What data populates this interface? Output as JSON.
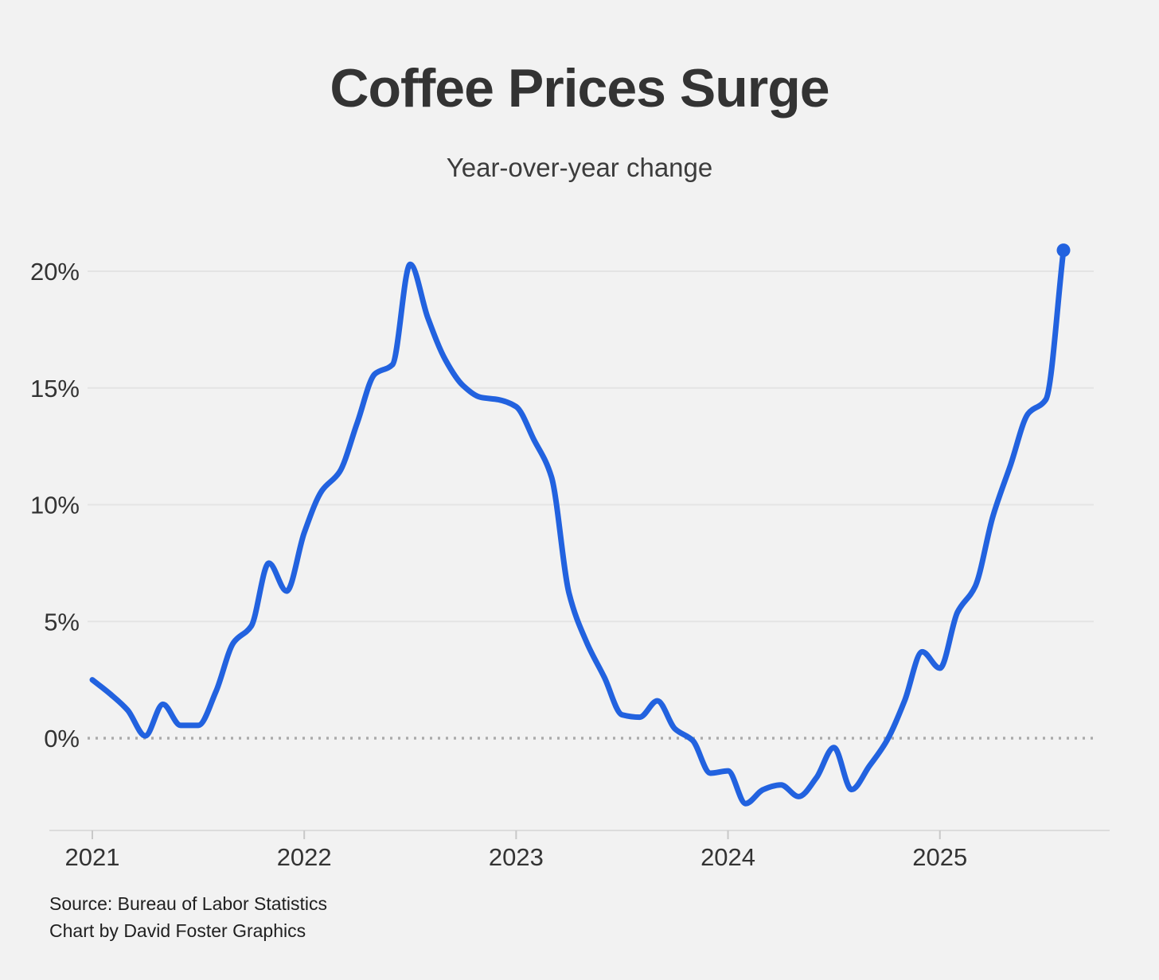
{
  "header": {
    "title": "Coffee Prices Surge",
    "subtitle": "Year-over-year change"
  },
  "footer": {
    "source": "Source: Bureau of Labor Statistics",
    "credit": "Chart by David Foster Graphics"
  },
  "chart_data": {
    "type": "line",
    "title": "Coffee Prices Surge",
    "subtitle": "Year-over-year change",
    "unit": "percent year-over-year",
    "x_start": "2021-01",
    "x_end": "2025-08",
    "x_tick_labels": [
      "2021",
      "2022",
      "2023",
      "2024",
      "2025"
    ],
    "x_tick_month_index": [
      0,
      12,
      24,
      36,
      48
    ],
    "y_tick_labels": [
      "0%",
      "5%",
      "10%",
      "15%",
      "20%"
    ],
    "y_tick_values": [
      0,
      5,
      10,
      15,
      20
    ],
    "ylim": [
      -3.6,
      21.6
    ],
    "grid": "horizontal",
    "zero_line": "dotted",
    "legend": "none",
    "series": [
      {
        "name": "Coffee prices, year-over-year change (%)",
        "months": [
          "2021-01",
          "2021-02",
          "2021-03",
          "2021-04",
          "2021-05",
          "2021-06",
          "2021-07",
          "2021-08",
          "2021-09",
          "2021-10",
          "2021-11",
          "2021-12",
          "2022-01",
          "2022-02",
          "2022-03",
          "2022-04",
          "2022-05",
          "2022-06",
          "2022-07",
          "2022-08",
          "2022-09",
          "2022-10",
          "2022-11",
          "2022-12",
          "2023-01",
          "2023-02",
          "2023-03",
          "2023-04",
          "2023-05",
          "2023-06",
          "2023-07",
          "2023-08",
          "2023-09",
          "2023-10",
          "2023-11",
          "2023-12",
          "2024-01",
          "2024-02",
          "2024-03",
          "2024-04",
          "2024-05",
          "2024-06",
          "2024-07",
          "2024-08",
          "2024-09",
          "2024-10",
          "2024-11",
          "2024-12",
          "2025-01",
          "2025-02",
          "2025-03",
          "2025-04",
          "2025-05",
          "2025-06",
          "2025-07",
          "2025-08"
        ],
        "values": [
          2.5,
          1.9,
          1.2,
          0.1,
          1.45,
          0.55,
          0.55,
          2.0,
          4.1,
          4.8,
          7.5,
          6.3,
          8.8,
          10.6,
          11.4,
          13.5,
          15.6,
          16.0,
          20.3,
          18.0,
          16.2,
          15.1,
          14.6,
          14.5,
          14.2,
          12.8,
          11.2,
          6.2,
          4.1,
          2.6,
          1.0,
          0.9,
          1.6,
          0.4,
          -0.1,
          -1.5,
          -1.4,
          -2.8,
          -2.2,
          -2.0,
          -2.5,
          -1.7,
          -0.4,
          -2.2,
          -1.2,
          -0.1,
          1.6,
          3.7,
          3.0,
          5.4,
          6.5,
          9.5,
          11.7,
          13.9,
          14.5,
          20.9
        ]
      }
    ],
    "end_point": {
      "month": "2025-08",
      "value": 20.9,
      "marker": "dot"
    },
    "colors": {
      "line": "#2262df",
      "end_dot": "#2262df",
      "background": "#f2f2f2",
      "grid": "#e4e4e4",
      "zero_line": "#ababab",
      "axis_line": "#dcdcdc",
      "tick": "#c8c8c8",
      "text": "#333333"
    }
  }
}
